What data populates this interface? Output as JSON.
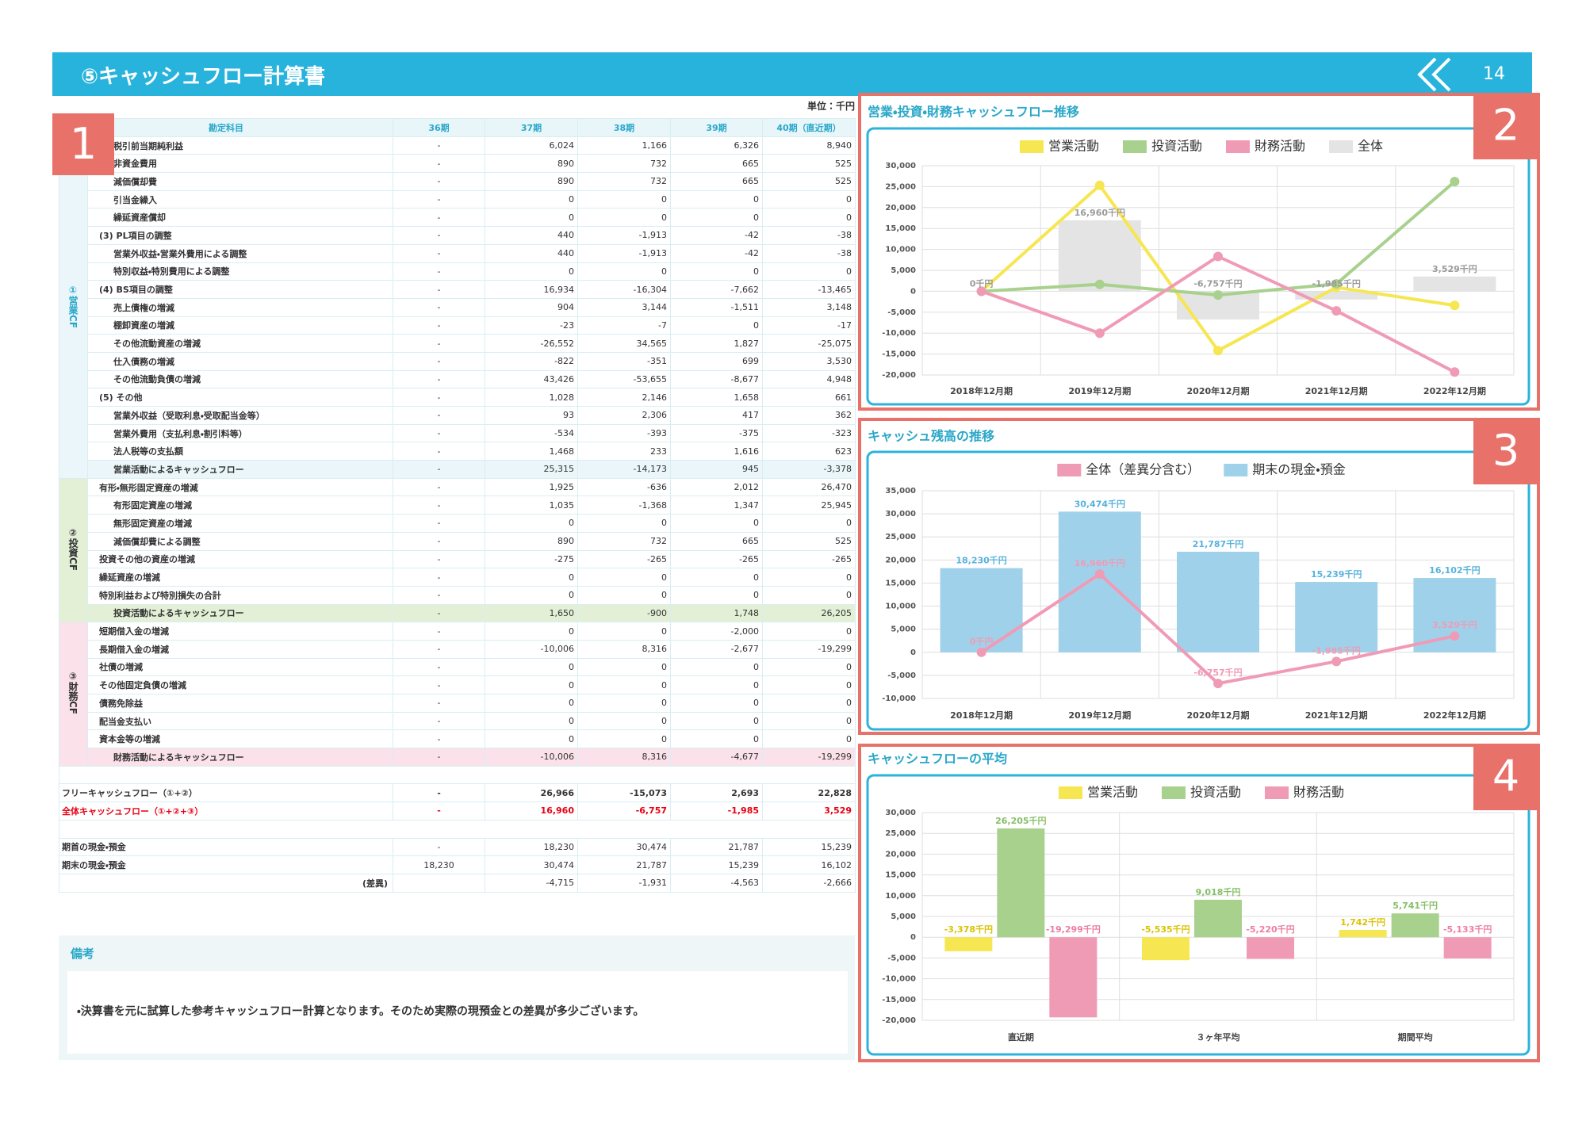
{
  "header": {
    "title": "⑤キャッシュフロー計算書",
    "page": "14"
  },
  "badges": [
    "1",
    "2",
    "3",
    "4"
  ],
  "table": {
    "unit": "単位：千円",
    "columns": [
      "勘定科目",
      "36期",
      "37期",
      "38期",
      "39期",
      "40期（直近期）"
    ],
    "groups": [
      {
        "label": "①営業CF",
        "rows": [
          [
            "税引前当期純利益",
            "-",
            "6,024",
            "1,166",
            "6,326",
            "8,940"
          ],
          [
            "非資金費用",
            "-",
            "890",
            "732",
            "665",
            "525"
          ],
          [
            "減価償却費",
            "-",
            "890",
            "732",
            "665",
            "525"
          ],
          [
            "引当金繰入",
            "-",
            "0",
            "0",
            "0",
            "0"
          ],
          [
            "繰延資産償却",
            "-",
            "0",
            "0",
            "0",
            "0"
          ],
          [
            "(3) PL項目の調整",
            "-",
            "440",
            "-1,913",
            "-42",
            "-38"
          ],
          [
            "営業外収益・営業外費用による調整",
            "-",
            "440",
            "-1,913",
            "-42",
            "-38"
          ],
          [
            "特別収益・特別費用による調整",
            "-",
            "0",
            "0",
            "0",
            "0"
          ],
          [
            "(4) BS項目の調整",
            "-",
            "16,934",
            "-16,304",
            "-7,662",
            "-13,465"
          ],
          [
            "売上債権の増減",
            "-",
            "904",
            "3,144",
            "-1,511",
            "3,148"
          ],
          [
            "棚卸資産の増減",
            "-",
            "-23",
            "-7",
            "0",
            "-17"
          ],
          [
            "その他流動資産の増減",
            "-",
            "-26,552",
            "34,565",
            "1,827",
            "-25,075"
          ],
          [
            "仕入債務の増減",
            "-",
            "-822",
            "-351",
            "699",
            "3,530"
          ],
          [
            "その他流動負債の増減",
            "-",
            "43,426",
            "-53,655",
            "-8,677",
            "4,948"
          ],
          [
            "(5) その他",
            "-",
            "1,028",
            "2,146",
            "1,658",
            "661"
          ],
          [
            "営業外収益（受取利息・受取配当金等）",
            "-",
            "93",
            "2,306",
            "417",
            "362"
          ],
          [
            "営業外費用（支払利息・割引料等）",
            "-",
            "-534",
            "-393",
            "-375",
            "-323"
          ],
          [
            "法人税等の支払額",
            "-",
            "1,468",
            "233",
            "1,616",
            "623"
          ],
          [
            "営業活動によるキャッシュフロー",
            "-",
            "25,315",
            "-14,173",
            "945",
            "-3,378"
          ]
        ]
      },
      {
        "label": "②投資CF",
        "rows": [
          [
            "有形・無形固定資産の増減",
            "-",
            "1,925",
            "-636",
            "2,012",
            "26,470"
          ],
          [
            "有形固定資産の増減",
            "-",
            "1,035",
            "-1,368",
            "1,347",
            "25,945"
          ],
          [
            "無形固定資産の増減",
            "-",
            "0",
            "0",
            "0",
            "0"
          ],
          [
            "減価償却費による調整",
            "-",
            "890",
            "732",
            "665",
            "525"
          ],
          [
            "投資その他の資産の増減",
            "-",
            "-275",
            "-265",
            "-265",
            "-265"
          ],
          [
            "繰延資産の増減",
            "-",
            "0",
            "0",
            "0",
            "0"
          ],
          [
            "特別利益および特別損失の合計",
            "-",
            "0",
            "0",
            "0",
            "0"
          ],
          [
            "投資活動によるキャッシュフロー",
            "-",
            "1,650",
            "-900",
            "1,748",
            "26,205"
          ]
        ]
      },
      {
        "label": "③財務CF",
        "rows": [
          [
            "短期借入金の増減",
            "-",
            "0",
            "0",
            "-2,000",
            "0"
          ],
          [
            "長期借入金の増減",
            "-",
            "-10,006",
            "8,316",
            "-2,677",
            "-19,299"
          ],
          [
            "社債の増減",
            "-",
            "0",
            "0",
            "0",
            "0"
          ],
          [
            "その他固定負債の増減",
            "-",
            "0",
            "0",
            "0",
            "0"
          ],
          [
            "債務免除益",
            "-",
            "0",
            "0",
            "0",
            "0"
          ],
          [
            "配当金支払い",
            "-",
            "0",
            "0",
            "0",
            "0"
          ],
          [
            "資本金等の増減",
            "-",
            "0",
            "0",
            "0",
            "0"
          ],
          [
            "財務活動によるキャッシュフロー",
            "-",
            "-10,006",
            "8,316",
            "-4,677",
            "-19,299"
          ]
        ]
      },
      {
        "rows": [
          [
            "フリーキャッシュフロー（①+②）",
            "-",
            "26,966",
            "-15,073",
            "2,693",
            "22,828"
          ],
          [
            "全体キャッシュフロー（①+②+③）",
            "-",
            "16,960",
            "-6,757",
            "-1,985",
            "3,529"
          ]
        ]
      },
      {
        "rows": [
          [
            "期首の現金・預金",
            "-",
            "18,230",
            "30,474",
            "21,787",
            "15,239"
          ],
          [
            "期末の現金・預金",
            "18,230",
            "30,474",
            "21,787",
            "15,239",
            "16,102"
          ],
          [
            "(差異)",
            null,
            "-4,715",
            "-1,931",
            "-4,563",
            "-2,666"
          ]
        ]
      }
    ]
  },
  "notes": {
    "title": "備考",
    "text": "・決算書を元に試算した参考キャッシュフロー計算となります。そのため実際の現預金との差異が多少ございます。"
  },
  "charts": [
    {
      "type": "combo",
      "title": "営業・投資・財務キャッシュフロー推移",
      "categories": [
        "2018年12月期",
        "2019年12月期",
        "2020年12月期",
        "2021年12月期",
        "2022年12月期"
      ],
      "series": [
        {
          "name": "営業活動",
          "type": "line",
          "color": "#f6e651",
          "values": [
            0,
            25315,
            -14173,
            945,
            -3378
          ]
        },
        {
          "name": "投資活動",
          "type": "line",
          "color": "#a9d18e",
          "values": [
            0,
            1650,
            -900,
            1748,
            26205
          ]
        },
        {
          "name": "財務活動",
          "type": "line",
          "color": "#f09bb6",
          "values": [
            0,
            -10006,
            8316,
            -4677,
            -19299
          ]
        },
        {
          "name": "全体",
          "type": "bar",
          "color": "#e4e4e4",
          "label_color": "#9a9a9a",
          "values": [
            0,
            16960,
            -6757,
            -1985,
            3529
          ],
          "value_labels": [
            "0千円",
            "16,960千円",
            "-6,757千円",
            "-1,985千円",
            "3,529千円"
          ]
        }
      ],
      "ylim": [
        -20000,
        30000
      ],
      "yticks": [
        {
          "value": -20000,
          "label": "-20,000"
        },
        {
          "value": -15000,
          "label": "-15,000"
        },
        {
          "value": -10000,
          "label": "-10,000"
        },
        {
          "value": -5000,
          "label": "-5,000"
        },
        0,
        {
          "value": 5000,
          "label": "5,000"
        },
        {
          "value": 10000,
          "label": "10,000"
        },
        {
          "value": 15000,
          "label": "15,000"
        },
        {
          "value": 20000,
          "label": "20,000"
        },
        {
          "value": 25000,
          "label": "25,000"
        },
        {
          "value": 30000,
          "label": "30,000"
        }
      ],
      "grid": true
    },
    {
      "type": "combo",
      "title": "キャッシュ残高の推移",
      "categories": [
        "2018年12月期",
        "2019年12月期",
        "2020年12月期",
        "2021年12月期",
        "2022年12月期"
      ],
      "series": [
        {
          "name": "全体（差異分含む）",
          "type": "line",
          "color": "#f09bb6",
          "label_color": "#f09bb6",
          "values": [
            0,
            16960,
            -6757,
            -1985,
            3529
          ],
          "value_labels": [
            "0千円",
            "16,960千円",
            "-6,757千円",
            "-1,985千円",
            "3,529千円"
          ]
        },
        {
          "name": "期末の現金・預金",
          "type": "bar",
          "color": "#9fd2ea",
          "label_color": "#55b3dc",
          "values": [
            18230,
            30474,
            21787,
            15239,
            16102
          ],
          "value_labels": [
            "18,230千円",
            "30,474千円",
            "21,787千円",
            "15,239千円",
            "16,102千円"
          ]
        }
      ],
      "ylim": [
        -10000,
        35000
      ],
      "yticks": [
        {
          "value": -10000,
          "label": "-10,000"
        },
        {
          "value": -5000,
          "label": "-5,000"
        },
        0,
        {
          "value": 5000,
          "label": "5,000"
        },
        {
          "value": 10000,
          "label": "10,000"
        },
        {
          "value": 15000,
          "label": "15,000"
        },
        {
          "value": 20000,
          "label": "20,000"
        },
        {
          "value": 25000,
          "label": "25,000"
        },
        {
          "value": 30000,
          "label": "30,000"
        },
        {
          "value": 35000,
          "label": "35,000"
        }
      ],
      "grid": true
    },
    {
      "type": "bar",
      "title": "キャッシュフローの平均",
      "categories": [
        "直近期",
        "３ヶ年平均",
        "期間平均"
      ],
      "series": [
        {
          "name": "営業活動",
          "color": "#f6e651",
          "label_color": "#d9c300",
          "values": [
            -3378,
            -5535,
            1742
          ],
          "value_labels": [
            "-3,378千円",
            "-5,535千円",
            "1,742千円"
          ]
        },
        {
          "name": "投資活動",
          "color": "#a9d18e",
          "label_color": "#86bf66",
          "values": [
            26205,
            9018,
            5741
          ],
          "value_labels": [
            "26,205千円",
            "9,018千円",
            "5,741千円"
          ]
        },
        {
          "name": "財務活動",
          "color": "#f09bb6",
          "label_color": "#ec7ea3",
          "values": [
            -19299,
            -5220,
            -5133
          ],
          "value_labels": [
            "-19,299千円",
            "-5,220千円",
            "-5,133千円"
          ]
        }
      ],
      "ylim": [
        -20000,
        30000
      ],
      "yticks": [
        {
          "value": -20000,
          "label": "-20,000"
        },
        {
          "value": -15000,
          "label": "-15,000"
        },
        {
          "value": -10000,
          "label": "-10,000"
        },
        {
          "value": -5000,
          "label": "-5,000"
        },
        0,
        {
          "value": 5000,
          "label": "5,000"
        },
        {
          "value": 10000,
          "label": "10,000"
        },
        {
          "value": 15000,
          "label": "15,000"
        },
        {
          "value": 20000,
          "label": "20,000"
        },
        {
          "value": 25000,
          "label": "25,000"
        },
        {
          "value": 30000,
          "label": "30,000"
        }
      ],
      "grid": true
    }
  ]
}
